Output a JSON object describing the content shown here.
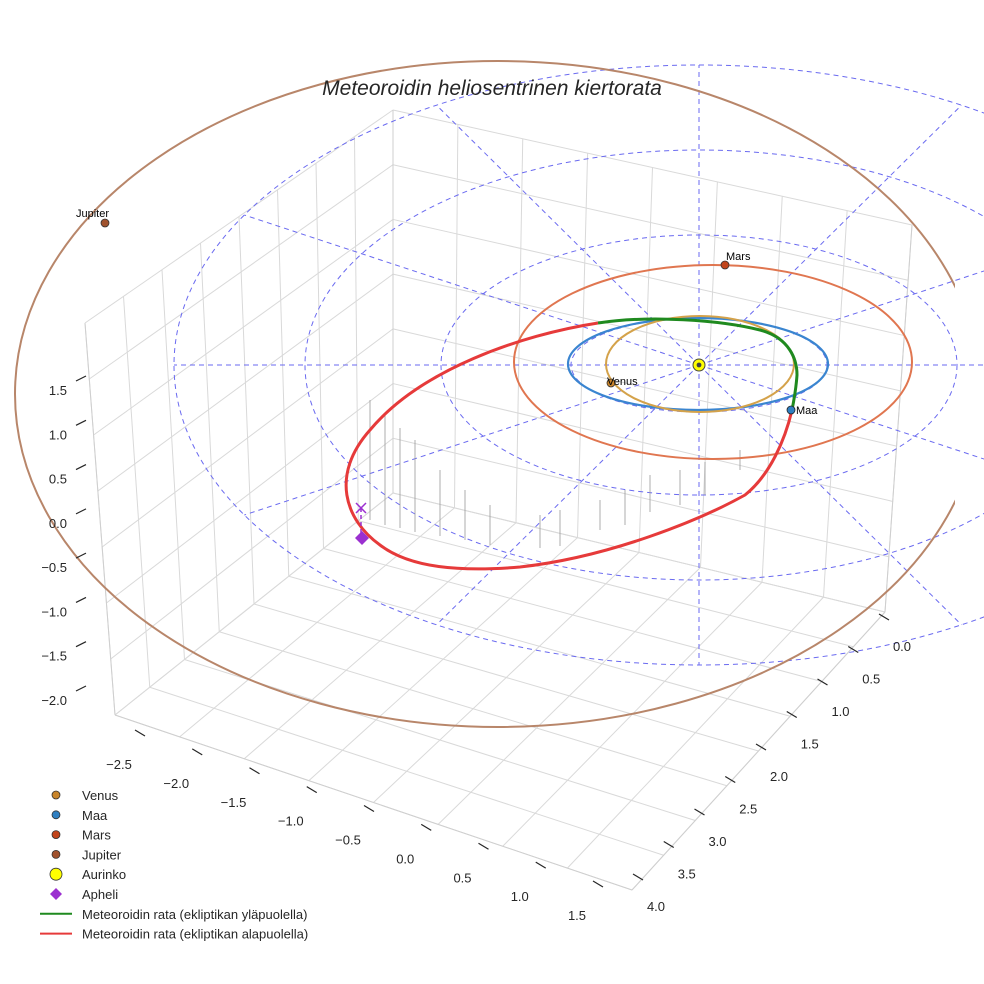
{
  "chart_data": {
    "type": "line",
    "projection": "3d",
    "title": "Meteoroidin heliosentrinen kiertorata",
    "axes": {
      "x": {
        "ticks": [
          "−2.5",
          "−2.0",
          "−1.5",
          "−1.0",
          "−0.5",
          "0.0",
          "0.5",
          "1.0",
          "1.5"
        ]
      },
      "y": {
        "ticks": [
          "0.0",
          "0.5",
          "1.0",
          "1.5",
          "2.0",
          "2.5",
          "3.0",
          "3.5",
          "4.0"
        ]
      },
      "z": {
        "ticks": [
          "1.5",
          "1.0",
          "0.5",
          "0.0",
          "−0.5",
          "−1.0",
          "−1.5",
          "−2.0"
        ]
      }
    },
    "grid": true,
    "ecliptic_reference_circles": true,
    "planets": [
      {
        "name": "Venus",
        "color": "#c8842a",
        "orbit_color": "#d4a24a"
      },
      {
        "name": "Maa",
        "color": "#2f7fc1",
        "orbit_color": "#3a85d0"
      },
      {
        "name": "Mars",
        "color": "#c1441b",
        "orbit_color": "#e07650"
      },
      {
        "name": "Jupiter",
        "color": "#a0522d",
        "orbit_color": "#b8866a"
      }
    ],
    "sun": {
      "name": "Aurinko",
      "color": "#ffff00"
    },
    "aphelion": {
      "name": "Apheli",
      "color": "#9b30d0"
    },
    "series": [
      {
        "name": "Meteoroidin rata (ekliptikan yläpuolella)",
        "color": "#1f8a1f"
      },
      {
        "name": "Meteoroidin rata (ekliptikan alapuolella)",
        "color": "#e63a3a"
      }
    ],
    "legend_position": "bottom-left",
    "legend": [
      {
        "label": "Venus",
        "marker": "circle",
        "color": "#c8842a"
      },
      {
        "label": "Maa",
        "marker": "circle",
        "color": "#2f7fc1"
      },
      {
        "label": "Mars",
        "marker": "circle",
        "color": "#c1441b"
      },
      {
        "label": "Jupiter",
        "marker": "circle",
        "color": "#a0522d"
      },
      {
        "label": "Aurinko",
        "marker": "circle",
        "color": "#ffff00"
      },
      {
        "label": "Apheli",
        "marker": "diamond",
        "color": "#9b30d0"
      },
      {
        "label": "Meteoroidin rata (ekliptikan yläpuolella)",
        "marker": "line",
        "color": "#1f8a1f"
      },
      {
        "label": "Meteoroidin rata (ekliptikan alapuolella)",
        "marker": "line",
        "color": "#e63a3a"
      }
    ]
  }
}
